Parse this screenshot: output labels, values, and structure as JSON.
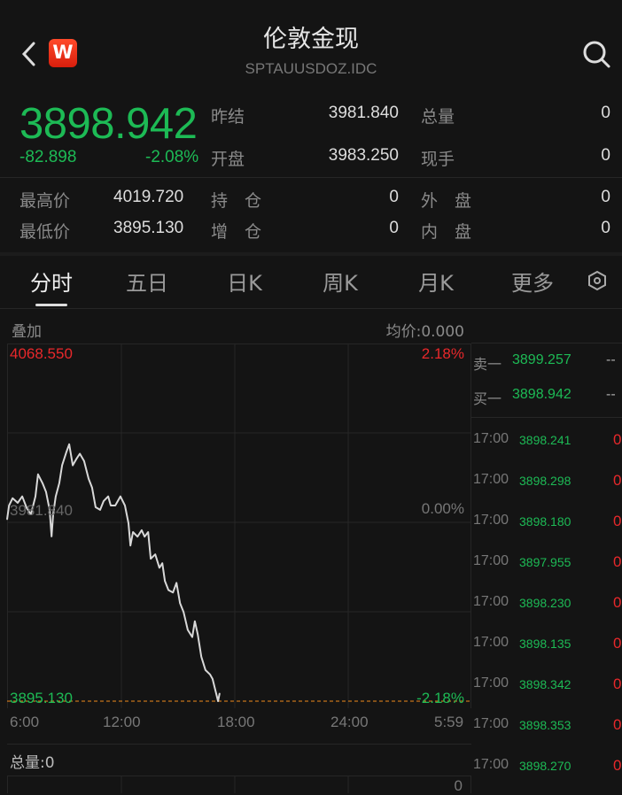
{
  "header": {
    "title": "伦敦金现",
    "code": "SPTAUUSDOZ.IDC",
    "logo_text": "W",
    "back_icon": "chevron-left-icon",
    "search_icon": "search-icon"
  },
  "quote": {
    "price": "3898.942",
    "change": "-82.898",
    "change_pct": "-2.08%",
    "prev_close_label": "昨结",
    "prev_close": "3981.840",
    "open_label": "开盘",
    "open": "3983.250",
    "volume_label": "总量",
    "volume": "0",
    "current_hand_label": "现手",
    "current_hand": "0",
    "high_label": "最高价",
    "high": "4019.720",
    "low_label": "最低价",
    "low": "3895.130",
    "oi_label": "持　仓",
    "oi": "0",
    "oi_change_label": "增　仓",
    "oi_change": "0",
    "outer_label": "外　盘",
    "outer": "0",
    "inner_label": "内　盘",
    "inner": "0"
  },
  "tabs": [
    {
      "label": "分时",
      "active": true
    },
    {
      "label": "五日"
    },
    {
      "label": "日K"
    },
    {
      "label": "周K"
    },
    {
      "label": "月K"
    },
    {
      "label": "更多"
    }
  ],
  "chart_labels": {
    "overlay": "叠加",
    "avg_price": "均价:0.000",
    "total_volume": "总量:0",
    "volume_axis_max": "0"
  },
  "colors": {
    "up": "#e8282b",
    "down": "#1dba55",
    "line": "#d8d8d8",
    "low_line": "#f08a1c"
  },
  "chart_data": {
    "type": "line",
    "ylim": [
      3895.13,
      4068.55
    ],
    "prev_close": 3981.84,
    "y_labels": {
      "top": "4068.550",
      "mid": "3981.840",
      "bottom": "3895.130"
    },
    "pct_labels": {
      "top": "2.18%",
      "mid": "0.00%",
      "bottom": "-2.18%"
    },
    "x_ticks": [
      "6:00",
      "12:00",
      "18:00",
      "24:00",
      "5:59"
    ],
    "x": [
      "6:00",
      "6:06",
      "6:17",
      "6:33",
      "6:47",
      "7:01",
      "7:14",
      "7:28",
      "7:36",
      "7:50",
      "8:01",
      "8:12",
      "8:18",
      "8:23",
      "8:31",
      "8:42",
      "8:51",
      "9:04",
      "9:13",
      "9:24",
      "9:35",
      "9:46",
      "9:59",
      "10:13",
      "10:24",
      "10:35",
      "10:49",
      "11:00",
      "11:14",
      "11:22",
      "11:36",
      "11:52",
      "12:06",
      "12:17",
      "12:23",
      "12:31",
      "12:45",
      "12:58",
      "13:07",
      "13:18",
      "13:26",
      "13:40",
      "13:53",
      "14:02",
      "14:10",
      "14:21",
      "14:35",
      "14:46",
      "14:57",
      "15:08",
      "15:21",
      "15:35",
      "15:43",
      "15:52",
      "16:03",
      "16:16",
      "16:30",
      "16:38",
      "16:55",
      "17:00"
    ],
    "y": [
      3983.25,
      3990.0,
      3993.5,
      3991.3,
      3994.4,
      3988.7,
      3985.7,
      3994.4,
      4005.1,
      4000.8,
      3996.5,
      3987.9,
      3975.0,
      3985.7,
      3994.4,
      4000.8,
      4009.5,
      4015.9,
      4019.7,
      4009.5,
      4012.5,
      4015.1,
      4011.6,
      4003.0,
      3998.7,
      3989.2,
      3987.9,
      3992.2,
      3994.4,
      3990.0,
      3990.0,
      3994.4,
      3990.0,
      3981.4,
      3970.6,
      3977.1,
      3974.9,
      3978.0,
      3974.9,
      3977.1,
      3964.2,
      3966.3,
      3959.8,
      3962.0,
      3953.4,
      3949.0,
      3947.8,
      3952.5,
      3942.6,
      3938.3,
      3929.7,
      3926.2,
      3933.9,
      3927.5,
      3916.7,
      3910.2,
      3908.1,
      3905.9,
      3895.13,
      3898.94
    ]
  },
  "order_book": [
    {
      "label": "卖一",
      "price": "3899.257",
      "vol": "--"
    },
    {
      "label": "买一",
      "price": "3898.942",
      "vol": "--"
    }
  ],
  "ticks": [
    {
      "time": "17:00",
      "price": "3898.241",
      "vol": "0"
    },
    {
      "time": "17:00",
      "price": "3898.298",
      "vol": "0"
    },
    {
      "time": "17:00",
      "price": "3898.180",
      "vol": "0"
    },
    {
      "time": "17:00",
      "price": "3897.955",
      "vol": "0"
    },
    {
      "time": "17:00",
      "price": "3898.230",
      "vol": "0"
    },
    {
      "time": "17:00",
      "price": "3898.135",
      "vol": "0"
    },
    {
      "time": "17:00",
      "price": "3898.342",
      "vol": "0"
    },
    {
      "time": "17:00",
      "price": "3898.353",
      "vol": "0"
    },
    {
      "time": "17:00",
      "price": "3898.270",
      "vol": "0"
    }
  ]
}
